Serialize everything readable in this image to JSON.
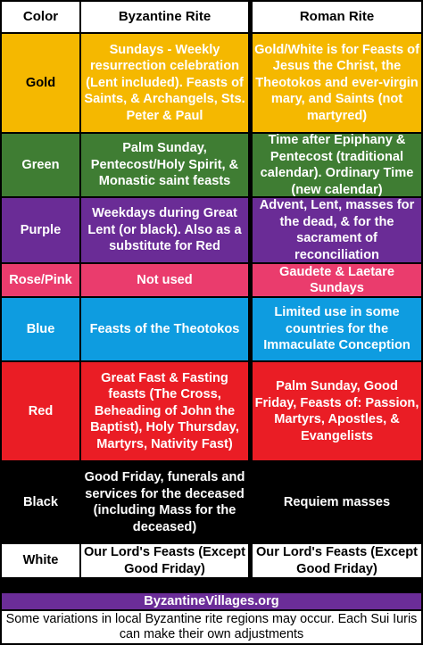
{
  "header": {
    "color": "Color",
    "byzantine": "Byzantine Rite",
    "roman": "Roman Rite"
  },
  "rows": [
    {
      "color": "Gold",
      "byzantine": "Sundays - Weekly resurrection celebration (Lent included). Feasts of Saints, & Archangels, Sts. Peter & Paul",
      "roman": "Gold/White is for Feasts of Jesus the Christ, the Theotokos and ever-virgin mary, and Saints (not martyred)",
      "bg": "#f5b800"
    },
    {
      "color": "Green",
      "byzantine": "Palm Sunday, Pentecost/Holy Spirit, & Monastic saint feasts",
      "roman": "Time after Epiphany & Pentecost (traditional calendar). Ordinary Time (new calendar)",
      "bg": "#3f7d33"
    },
    {
      "color": "Purple",
      "byzantine": "Weekdays during Great Lent (or black). Also as a substitute for Red",
      "roman": "Advent, Lent, masses for the dead, & for the sacrament of reconciliation",
      "bg": "#6a2c96"
    },
    {
      "color": "Rose/Pink",
      "byzantine": "Not used",
      "roman": "Gaudete & Laetare Sundays",
      "bg": "#ea3c6d"
    },
    {
      "color": "Blue",
      "byzantine": "Feasts of the Theotokos",
      "roman": "Limited use in some countries for the Immaculate Conception",
      "bg": "#0e9ce0"
    },
    {
      "color": "Red",
      "byzantine": "Great Fast & Fasting feasts (The Cross, Beheading of John the Baptist), Holy Thursday, Martyrs, Nativity Fast)",
      "roman": "Palm Sunday, Good Friday, Feasts of: Passion, Martyrs, Apostles, & Evangelists",
      "bg": "#ea1d25"
    },
    {
      "color": "Black",
      "byzantine": "Good Friday, funerals and services for the deceased (including Mass for the deceased)",
      "roman": "Requiem masses",
      "bg": "#000000"
    },
    {
      "color": "White",
      "byzantine": "Our Lord's Feasts (Except Good Friday)",
      "roman": "Our Lord's Feasts (Except Good Friday)",
      "bg": "#ffffff"
    }
  ],
  "footer": {
    "site": "ByzantineVillages.org",
    "note": "Some variations in local Byzantine rite regions may occur. Each Sui Iuris can make their own adjustments"
  }
}
